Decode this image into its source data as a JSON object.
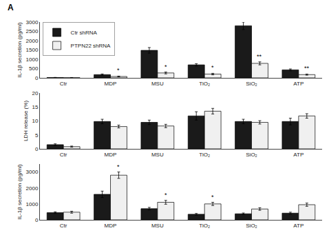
{
  "chart_data": [
    {
      "type": "bar",
      "categories": [
        "Ctr",
        "MDP",
        "MSU",
        "TiO₂",
        "SiO₂",
        "ATP"
      ],
      "series": [
        {
          "name": "Ctr shRNA",
          "color": "#1a1a1a",
          "values": [
            20,
            175,
            1480,
            700,
            2800,
            430
          ],
          "errors": [
            5,
            35,
            150,
            60,
            200,
            50
          ]
        },
        {
          "name": "PTPN22 shRNA",
          "color": "#f0f0f0",
          "values": [
            10,
            75,
            265,
            205,
            780,
            175
          ],
          "errors": [
            5,
            20,
            50,
            40,
            80,
            30
          ]
        }
      ],
      "ylabel": "IL-1β secretion (pg/ml)",
      "ylim": [
        0,
        3000
      ],
      "yticks": [
        0,
        500,
        1000,
        1500,
        2000,
        2500,
        3000
      ],
      "grid": false,
      "legend": "upper left",
      "annotations": [
        {
          "text": "A"
        },
        {
          "text": "*",
          "category": "MDP",
          "series": "PTPN22 shRNA"
        },
        {
          "text": "*",
          "category": "MSU",
          "series": "PTPN22 shRNA"
        },
        {
          "text": "*",
          "category": "TiO₂",
          "series": "PTPN22 shRNA"
        },
        {
          "text": "**",
          "category": "SiO₂",
          "series": "PTPN22 shRNA"
        },
        {
          "text": "**",
          "category": "ATP",
          "series": "PTPN22 shRNA"
        }
      ]
    },
    {
      "type": "bar",
      "categories": [
        "Ctr",
        "MDP",
        "MSU",
        "TiO₂",
        "SiO₂",
        "ATP"
      ],
      "series": [
        {
          "name": "Ctr shRNA",
          "color": "#1a1a1a",
          "values": [
            1.5,
            9.8,
            9.5,
            11.8,
            9.8,
            9.8
          ],
          "errors": [
            0.3,
            0.8,
            0.8,
            1.5,
            0.8,
            1.2
          ]
        },
        {
          "name": "PTPN22 shRNA",
          "color": "#f0f0f0",
          "values": [
            0.8,
            8.0,
            8.2,
            13.5,
            9.5,
            11.8
          ],
          "errors": [
            0.2,
            0.5,
            0.6,
            1.0,
            0.6,
            0.8
          ]
        }
      ],
      "ylabel": "LDH release (%)",
      "ylim": [
        0,
        20
      ],
      "yticks": [
        0,
        5,
        10,
        15,
        20
      ],
      "grid": false,
      "legend": false
    },
    {
      "type": "bar",
      "categories": [
        "Ctr",
        "MDP",
        "MSU",
        "TiO₂",
        "SiO₂",
        "ATP"
      ],
      "series": [
        {
          "name": "Ctr shRNA",
          "color": "#1a1a1a",
          "values": [
            450,
            1600,
            700,
            350,
            380,
            420
          ],
          "errors": [
            50,
            200,
            80,
            50,
            50,
            60
          ]
        },
        {
          "name": "PTPN22 shRNA",
          "color": "#f0f0f0",
          "values": [
            480,
            2800,
            1100,
            1000,
            680,
            950
          ],
          "errors": [
            60,
            200,
            120,
            100,
            80,
            100
          ]
        }
      ],
      "ylabel": "IL-1β secretion (pg/ml)",
      "ylim": [
        0,
        3500
      ],
      "yticks": [
        0,
        1000,
        2000,
        3000
      ],
      "grid": false,
      "legend": false,
      "annotations": [
        {
          "text": "*",
          "category": "MDP",
          "series": "PTPN22 shRNA"
        },
        {
          "text": "*",
          "category": "MSU",
          "series": "PTPN22 shRNA"
        },
        {
          "text": "*",
          "category": "TiO₂",
          "series": "PTPN22 shRNA"
        }
      ]
    }
  ]
}
